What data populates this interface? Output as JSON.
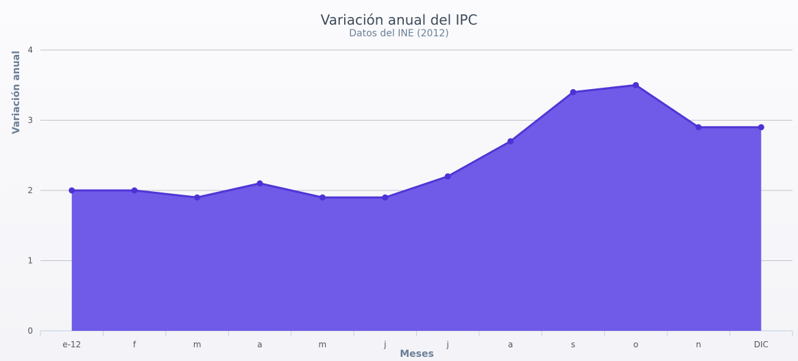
{
  "chart_data": {
    "type": "area",
    "title": "Variación anual del IPC",
    "subtitle": "Datos del INE (2012)",
    "xlabel": "Meses",
    "ylabel": "Variación anual",
    "categories": [
      "e-12",
      "f",
      "m",
      "a",
      "m",
      "j",
      "j",
      "a",
      "s",
      "o",
      "n",
      "DIC"
    ],
    "series": [
      {
        "values": [
          2.0,
          2.0,
          1.9,
          2.1,
          1.9,
          1.9,
          2.2,
          2.7,
          3.4,
          3.5,
          2.9,
          2.9
        ]
      }
    ],
    "ylim": [
      0,
      4
    ],
    "yticks": [
      0,
      1,
      2,
      3,
      4
    ],
    "grid": true,
    "legend": "none",
    "colors": {
      "area_fill": "#6f5be8",
      "line": "#4f36d6",
      "marker": "#4a32d4"
    }
  }
}
